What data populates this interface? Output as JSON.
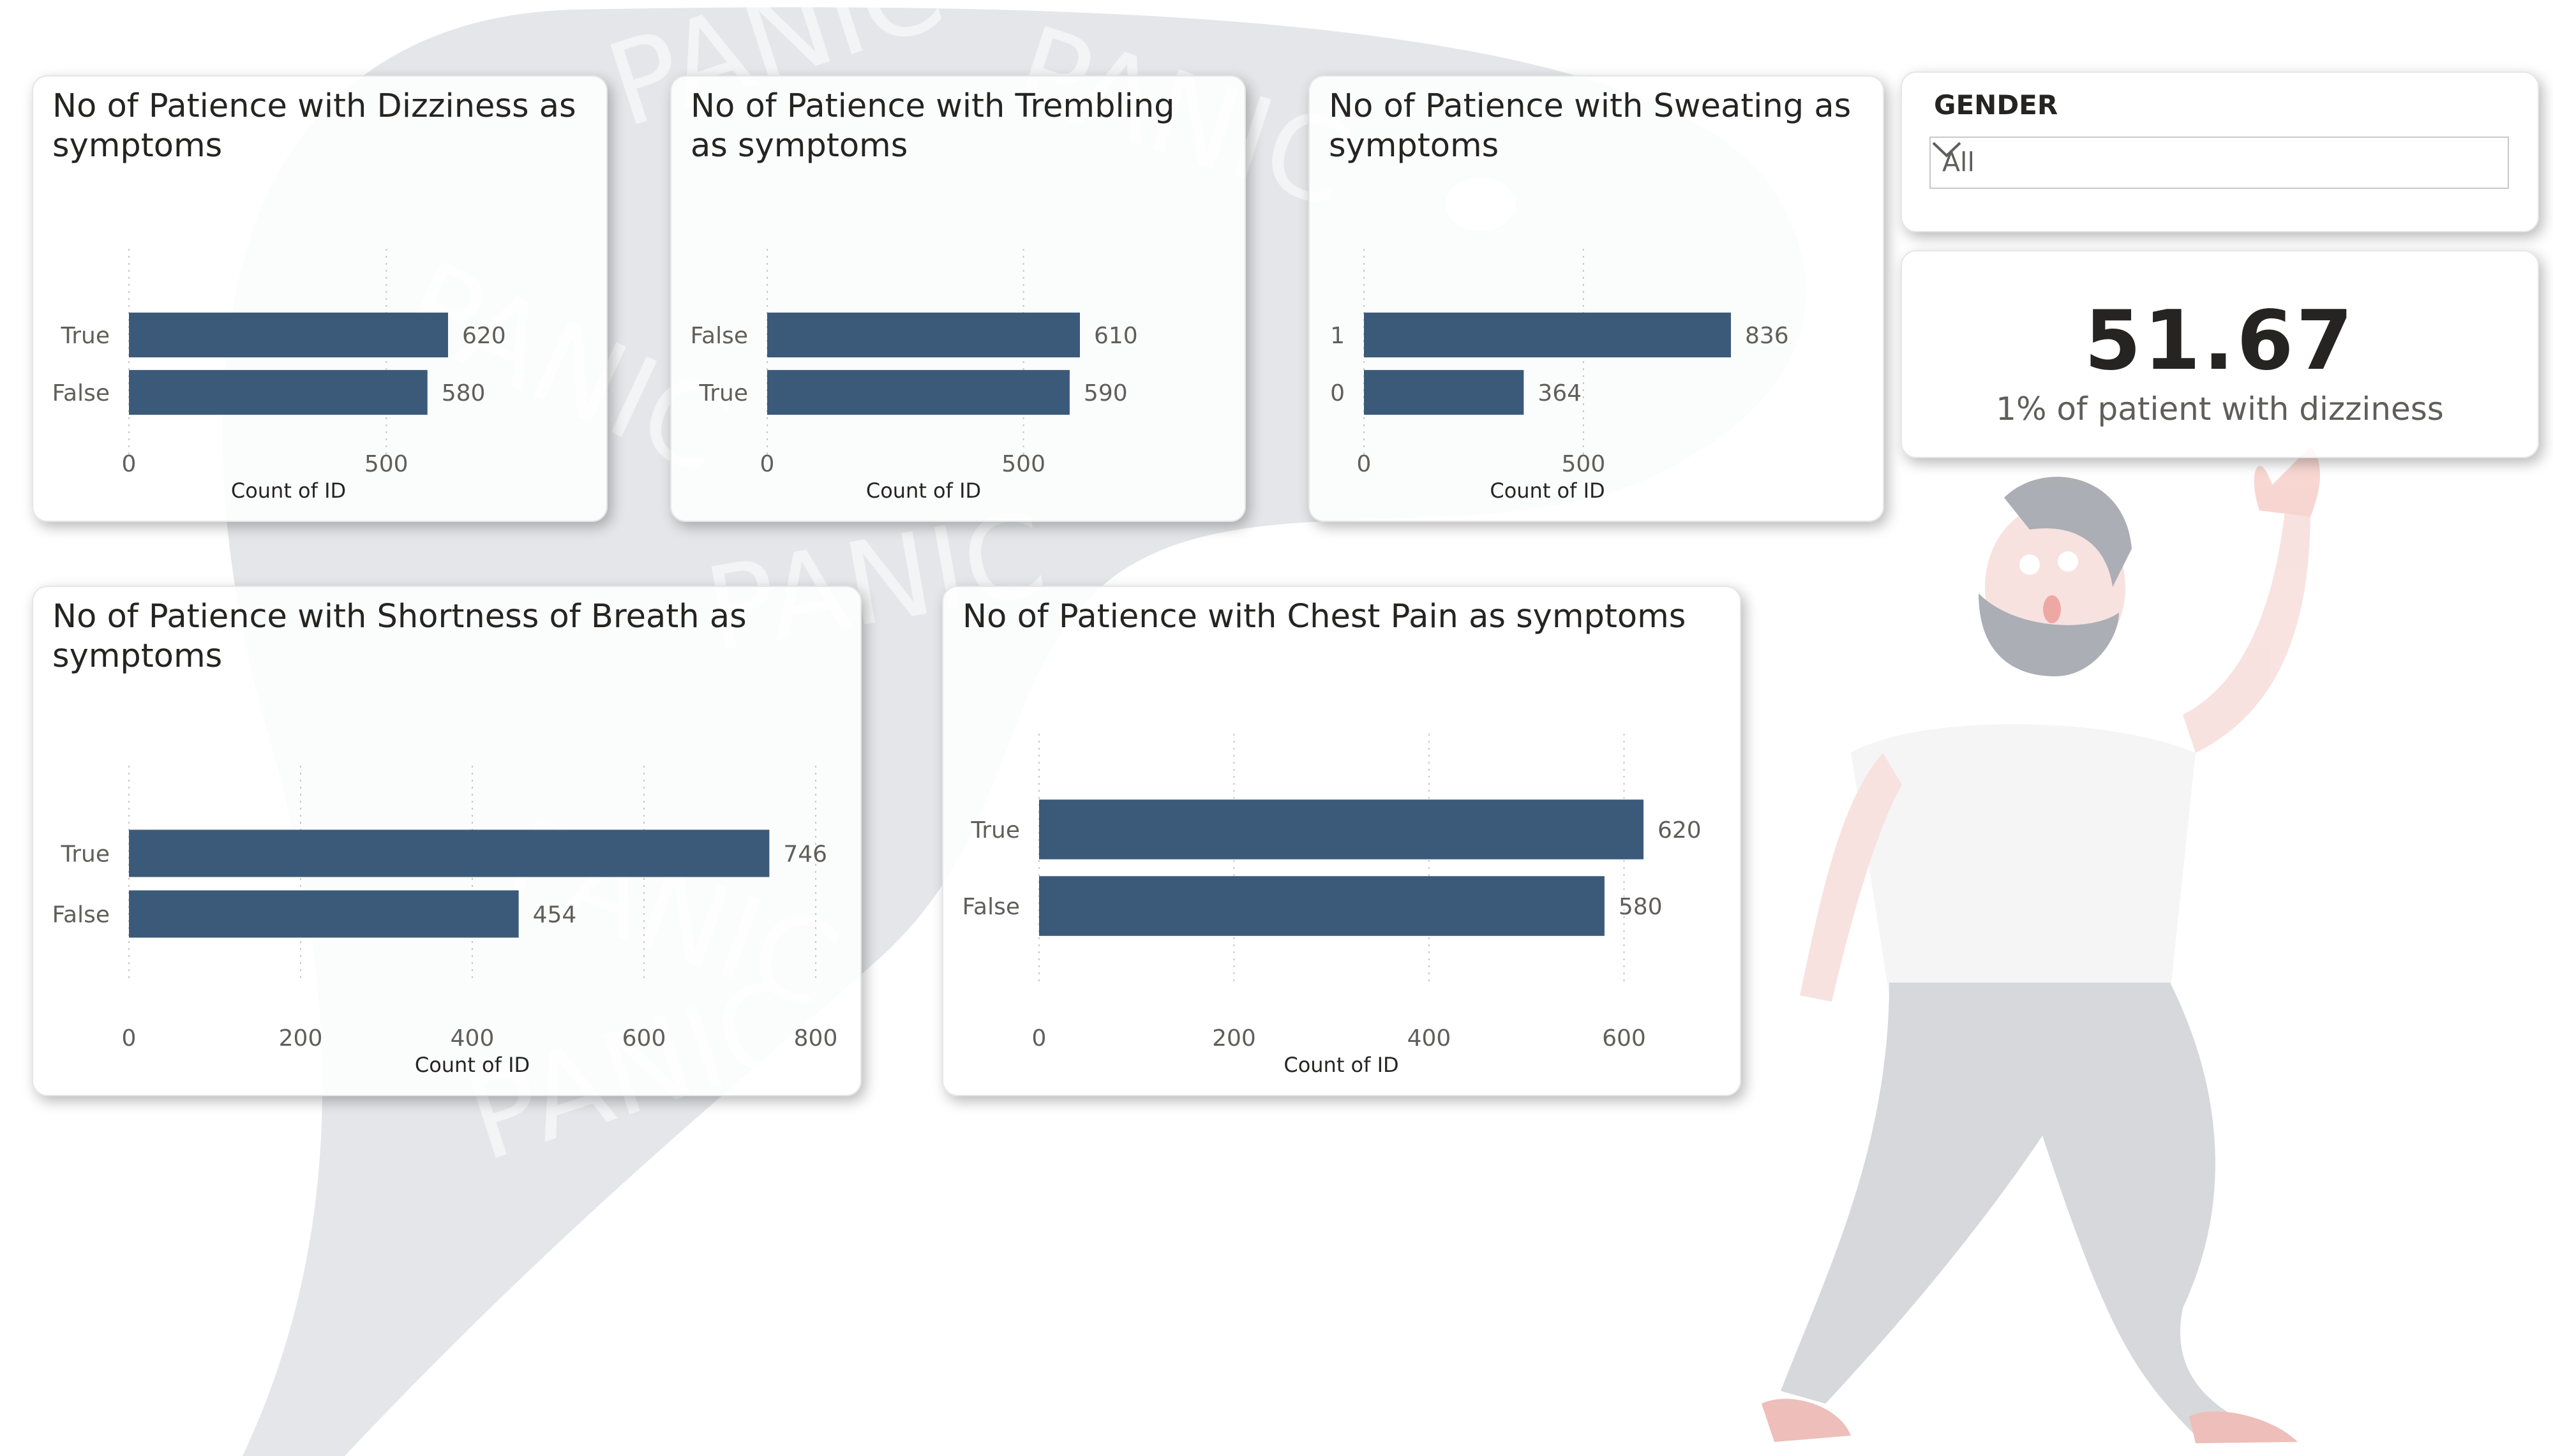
{
  "theme": {
    "bar_color": "#3b5a7a",
    "axis_text": "#605e5c",
    "title_text": "#252423"
  },
  "slicer": {
    "title": "GENDER",
    "value": "All",
    "icon": "chevron-down-icon"
  },
  "kpi": {
    "value": "51.67",
    "label": "1% of patient with dizziness"
  },
  "backdrop": {
    "watermark_text": "PANIC"
  },
  "chart_data": [
    {
      "type": "bar",
      "orientation": "horizontal",
      "title": "No of Patience with Dizziness as symptoms",
      "categories": [
        "True",
        "False"
      ],
      "values": [
        620,
        580
      ],
      "xlabel": "Count of ID",
      "ylabel": "",
      "xlim": [
        0,
        620
      ],
      "xticks": [
        0,
        500
      ],
      "grid": true
    },
    {
      "type": "bar",
      "orientation": "horizontal",
      "title": "No of Patience with Trembling as symptoms",
      "categories": [
        "False",
        "True"
      ],
      "values": [
        610,
        590
      ],
      "xlabel": "Count of ID",
      "ylabel": "",
      "xlim": [
        0,
        610
      ],
      "xticks": [
        0,
        500
      ],
      "grid": true
    },
    {
      "type": "bar",
      "orientation": "horizontal",
      "title": "No of Patience with Sweating as symptoms",
      "categories": [
        "1",
        "0"
      ],
      "values": [
        836,
        364
      ],
      "xlabel": "Count of ID",
      "ylabel": "",
      "xlim": [
        0,
        836
      ],
      "xticks": [
        0,
        500
      ],
      "grid": true
    },
    {
      "type": "bar",
      "orientation": "horizontal",
      "title": "No of Patience with Shortness of Breath as symptoms",
      "categories": [
        "True",
        "False"
      ],
      "values": [
        746,
        454
      ],
      "xlabel": "Count of ID",
      "ylabel": "",
      "xlim": [
        0,
        800
      ],
      "xticks": [
        0,
        200,
        400,
        600,
        800
      ],
      "grid": true
    },
    {
      "type": "bar",
      "orientation": "horizontal",
      "title": "No of Patience with Chest Pain as symptoms",
      "categories": [
        "True",
        "False"
      ],
      "values": [
        620,
        580
      ],
      "xlabel": "Count of ID",
      "ylabel": "",
      "xlim": [
        0,
        620
      ],
      "xticks": [
        0,
        200,
        400,
        600
      ],
      "grid": true
    }
  ]
}
